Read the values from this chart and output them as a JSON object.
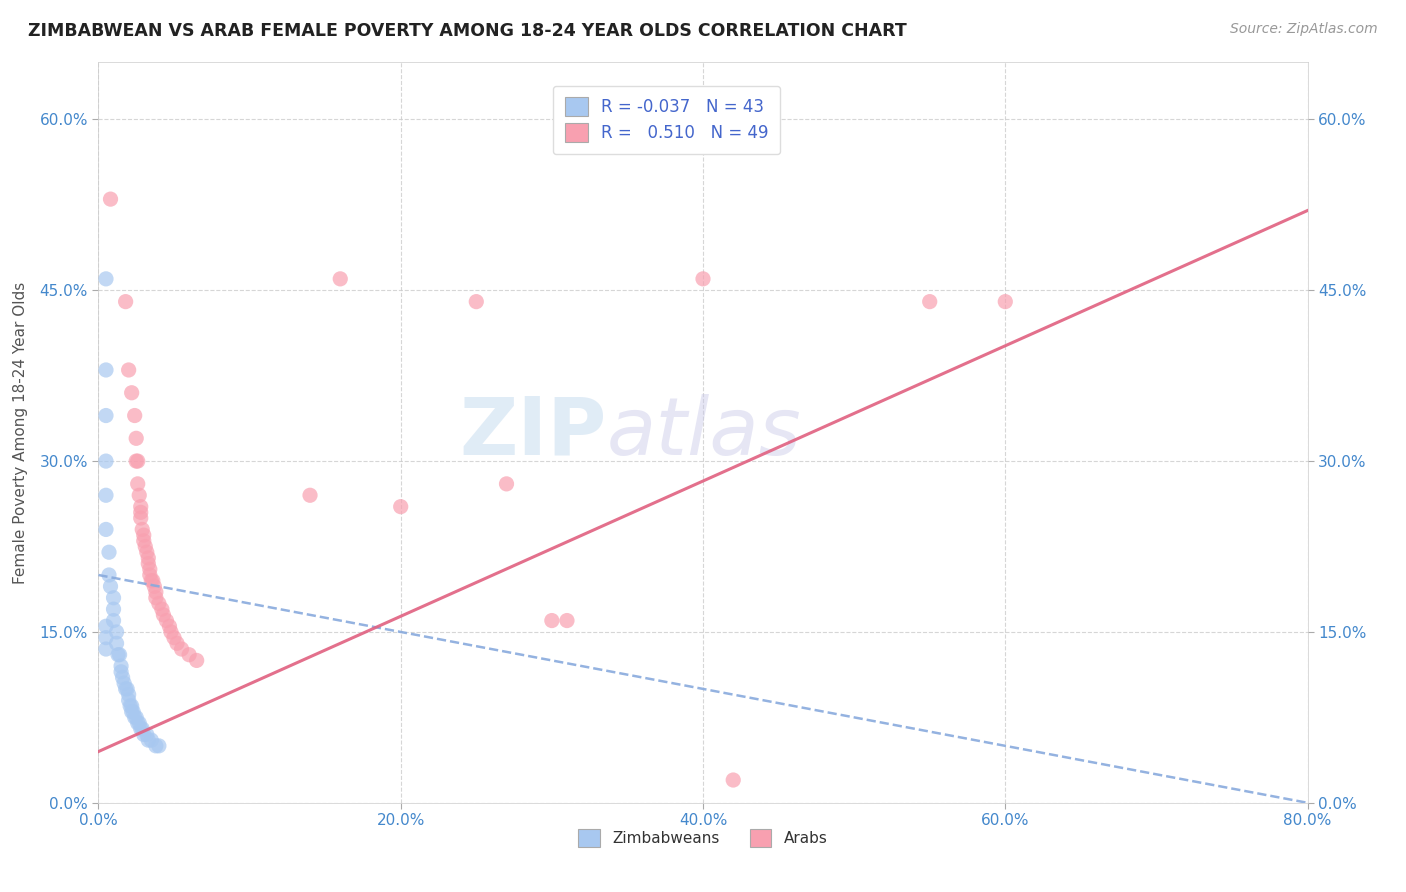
{
  "title": "ZIMBABWEAN VS ARAB FEMALE POVERTY AMONG 18-24 YEAR OLDS CORRELATION CHART",
  "source": "Source: ZipAtlas.com",
  "ylabel": "Female Poverty Among 18-24 Year Olds",
  "xlim": [
    0.0,
    0.8
  ],
  "ylim": [
    0.0,
    0.65
  ],
  "xtick_vals": [
    0.0,
    0.2,
    0.4,
    0.6,
    0.8
  ],
  "xtick_labels": [
    "0.0%",
    "20.0%",
    "40.0%",
    "60.0%",
    "80.0%"
  ],
  "ytick_vals": [
    0.0,
    0.15,
    0.3,
    0.45,
    0.6
  ],
  "ytick_labels": [
    "0.0%",
    "15.0%",
    "30.0%",
    "45.0%",
    "60.0%"
  ],
  "zimbabwean_R": "-0.037",
  "zimbabwean_N": "43",
  "arab_R": "0.510",
  "arab_N": "49",
  "zim_color": "#a8c8f0",
  "arab_color": "#f8a0b0",
  "zim_line_color": "#88aadd",
  "arab_line_color": "#e06080",
  "background_color": "#ffffff",
  "grid_color": "#cccccc",
  "zim_scatter": [
    [
      0.005,
      0.46
    ],
    [
      0.005,
      0.38
    ],
    [
      0.005,
      0.34
    ],
    [
      0.005,
      0.3
    ],
    [
      0.005,
      0.27
    ],
    [
      0.005,
      0.24
    ],
    [
      0.007,
      0.22
    ],
    [
      0.007,
      0.2
    ],
    [
      0.008,
      0.19
    ],
    [
      0.01,
      0.18
    ],
    [
      0.01,
      0.17
    ],
    [
      0.01,
      0.16
    ],
    [
      0.012,
      0.15
    ],
    [
      0.012,
      0.14
    ],
    [
      0.013,
      0.13
    ],
    [
      0.014,
      0.13
    ],
    [
      0.015,
      0.12
    ],
    [
      0.015,
      0.115
    ],
    [
      0.016,
      0.11
    ],
    [
      0.017,
      0.105
    ],
    [
      0.018,
      0.1
    ],
    [
      0.019,
      0.1
    ],
    [
      0.02,
      0.095
    ],
    [
      0.02,
      0.09
    ],
    [
      0.021,
      0.085
    ],
    [
      0.022,
      0.085
    ],
    [
      0.022,
      0.08
    ],
    [
      0.023,
      0.08
    ],
    [
      0.024,
      0.075
    ],
    [
      0.025,
      0.075
    ],
    [
      0.026,
      0.07
    ],
    [
      0.027,
      0.07
    ],
    [
      0.028,
      0.065
    ],
    [
      0.029,
      0.065
    ],
    [
      0.03,
      0.06
    ],
    [
      0.032,
      0.06
    ],
    [
      0.033,
      0.055
    ],
    [
      0.035,
      0.055
    ],
    [
      0.038,
      0.05
    ],
    [
      0.04,
      0.05
    ],
    [
      0.005,
      0.155
    ],
    [
      0.005,
      0.145
    ],
    [
      0.005,
      0.135
    ]
  ],
  "arab_scatter": [
    [
      0.008,
      0.53
    ],
    [
      0.018,
      0.44
    ],
    [
      0.02,
      0.38
    ],
    [
      0.022,
      0.36
    ],
    [
      0.024,
      0.34
    ],
    [
      0.025,
      0.32
    ],
    [
      0.025,
      0.3
    ],
    [
      0.026,
      0.3
    ],
    [
      0.026,
      0.28
    ],
    [
      0.027,
      0.27
    ],
    [
      0.028,
      0.26
    ],
    [
      0.028,
      0.255
    ],
    [
      0.028,
      0.25
    ],
    [
      0.029,
      0.24
    ],
    [
      0.03,
      0.235
    ],
    [
      0.03,
      0.23
    ],
    [
      0.031,
      0.225
    ],
    [
      0.032,
      0.22
    ],
    [
      0.033,
      0.215
    ],
    [
      0.033,
      0.21
    ],
    [
      0.034,
      0.205
    ],
    [
      0.034,
      0.2
    ],
    [
      0.035,
      0.195
    ],
    [
      0.036,
      0.195
    ],
    [
      0.037,
      0.19
    ],
    [
      0.038,
      0.185
    ],
    [
      0.038,
      0.18
    ],
    [
      0.04,
      0.175
    ],
    [
      0.042,
      0.17
    ],
    [
      0.043,
      0.165
    ],
    [
      0.045,
      0.16
    ],
    [
      0.047,
      0.155
    ],
    [
      0.048,
      0.15
    ],
    [
      0.05,
      0.145
    ],
    [
      0.052,
      0.14
    ],
    [
      0.055,
      0.135
    ],
    [
      0.06,
      0.13
    ],
    [
      0.065,
      0.125
    ],
    [
      0.14,
      0.27
    ],
    [
      0.16,
      0.46
    ],
    [
      0.2,
      0.26
    ],
    [
      0.27,
      0.28
    ],
    [
      0.3,
      0.16
    ],
    [
      0.31,
      0.16
    ],
    [
      0.4,
      0.46
    ],
    [
      0.55,
      0.44
    ],
    [
      0.6,
      0.44
    ],
    [
      0.42,
      0.02
    ],
    [
      0.25,
      0.44
    ]
  ],
  "zim_trendline": [
    0.0,
    0.2,
    0.8,
    0.0
  ],
  "arab_trendline": [
    0.0,
    0.045,
    0.8,
    0.52
  ]
}
